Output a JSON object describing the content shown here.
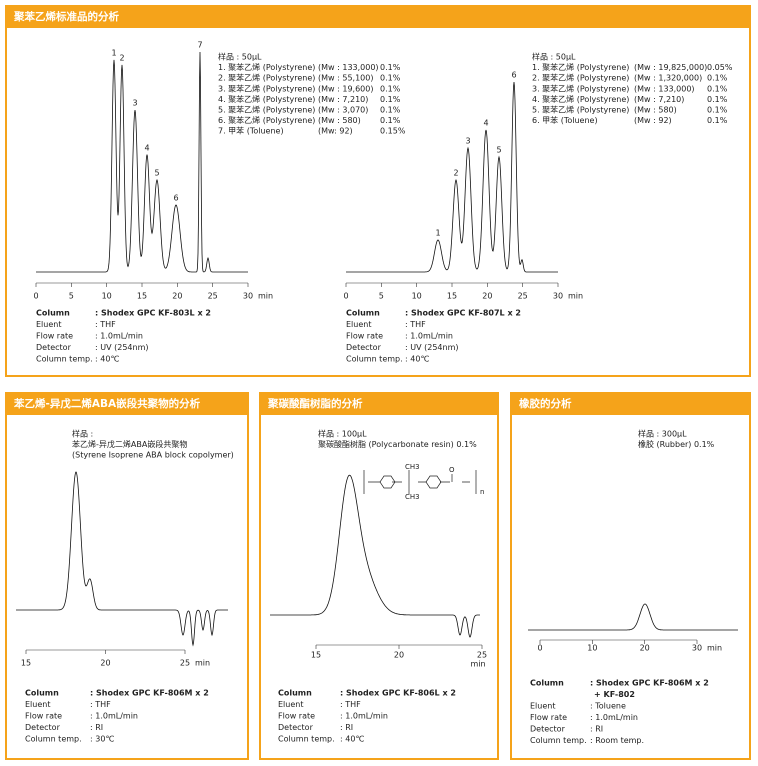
{
  "panels": [
    {
      "title": "聚苯乙烯标准品的分析",
      "charts": [
        {
          "type": "chromatogram",
          "peak_labels": [
            "1",
            "2",
            "3",
            "4",
            "5",
            "6",
            "7"
          ],
          "sample": {
            "header": "样品 : 50μL",
            "lines": [
              [
                "1. 聚苯乙烯 (Polystyrene)",
                "(Mw : 133,000)",
                "0.1%"
              ],
              [
                "2. 聚苯乙烯 (Polystyrene)",
                "(Mw :   55,100)",
                "0.1%"
              ],
              [
                "3. 聚苯乙烯 (Polystyrene)",
                "(Mw :   19,600)",
                "0.1%"
              ],
              [
                "4. 聚苯乙烯 (Polystyrene)",
                "(Mw :     7,210)",
                "0.1%"
              ],
              [
                "5. 聚苯乙烯 (Polystyrene)",
                "(Mw :     3,070)",
                "0.1%"
              ],
              [
                "6. 聚苯乙烯 (Polystyrene)",
                "(Mw :        580)",
                "0.1%"
              ],
              [
                "7. 甲苯 (Toluene)",
                "(Mw:          92)",
                "0.15%"
              ]
            ]
          },
          "xlim": [
            0,
            30
          ],
          "xticks": [
            0,
            5,
            10,
            15,
            20,
            25,
            30
          ],
          "x_unit": "min",
          "conditions": [
            [
              "Column",
              ": Shodex GPC KF-803L x 2"
            ],
            [
              "Eluent",
              ": THF"
            ],
            [
              "Flow rate",
              ": 1.0mL/min"
            ],
            [
              "Detector",
              ": UV (254nm)"
            ],
            [
              "Column temp.",
              ": 40℃"
            ]
          ]
        },
        {
          "type": "chromatogram",
          "peak_labels": [
            "1",
            "2",
            "3",
            "4",
            "5",
            "6"
          ],
          "sample": {
            "header": "样品 : 50μL",
            "lines": [
              [
                "1. 聚苯乙烯 (Polystyrene)",
                "(Mw : 19,825,000)",
                "0.05%"
              ],
              [
                "2. 聚苯乙烯 (Polystyrene)",
                "(Mw :   1,320,000)",
                "0.1%"
              ],
              [
                "3. 聚苯乙烯 (Polystyrene)",
                "(Mw :      133,000)",
                "0.1%"
              ],
              [
                "4. 聚苯乙烯 (Polystyrene)",
                "(Mw :          7,210)",
                "0.1%"
              ],
              [
                "5. 聚苯乙烯 (Polystyrene)",
                "(Mw :             580)",
                "0.1%"
              ],
              [
                "6. 甲苯 (Toluene)",
                "(Mw :               92)",
                "0.1%"
              ]
            ]
          },
          "xlim": [
            0,
            30
          ],
          "xticks": [
            0,
            5,
            10,
            15,
            20,
            25,
            30
          ],
          "x_unit": "min",
          "conditions": [
            [
              "Column",
              ": Shodex GPC KF-807L x 2"
            ],
            [
              "Eluent",
              ": THF"
            ],
            [
              "Flow rate",
              ": 1.0mL/min"
            ],
            [
              "Detector",
              ": UV (254nm)"
            ],
            [
              "Column temp.",
              ": 40℃"
            ]
          ]
        }
      ]
    },
    {
      "title": "苯乙烯-异戊二烯ABA嵌段共聚物的分析",
      "charts": [
        {
          "type": "chromatogram",
          "sample": {
            "header": "样品 :",
            "lines": [
              [
                "苯乙烯-异戊二烯ABA嵌段共聚物"
              ],
              [
                "(Styrene Isoprene ABA block copolymer)"
              ]
            ]
          },
          "xlim": [
            15,
            25
          ],
          "xticks": [
            15,
            20,
            25
          ],
          "x_unit": "min",
          "conditions": [
            [
              "Column",
              ": Shodex GPC KF-806M x 2"
            ],
            [
              "Eluent",
              ": THF"
            ],
            [
              "Flow rate",
              ": 1.0mL/min"
            ],
            [
              "Detector",
              ": RI"
            ],
            [
              "Column temp.",
              ": 30℃"
            ]
          ]
        }
      ]
    },
    {
      "title": "聚碳酸酯树脂的分析",
      "charts": [
        {
          "type": "chromatogram",
          "sample": {
            "header": "样品 : 100μL",
            "lines": [
              [
                "聚碳酸酯树脂 (Polycarbonate resin)  0.1%"
              ]
            ]
          },
          "structure": [
            "CH3",
            "CH3",
            "O",
            "n"
          ],
          "xlim": [
            15,
            25
          ],
          "xticks": [
            15,
            20,
            25
          ],
          "x_unit": "min",
          "conditions": [
            [
              "Column",
              ": Shodex GPC KF-806L x 2"
            ],
            [
              "Eluent",
              ": THF"
            ],
            [
              "Flow rate",
              ": 1.0mL/min"
            ],
            [
              "Detector",
              ": RI"
            ],
            [
              "Column temp.",
              ": 40℃"
            ]
          ]
        }
      ]
    },
    {
      "title": "橡胶的分析",
      "charts": [
        {
          "type": "chromatogram",
          "sample": {
            "header": "样品 : 300μL",
            "lines": [
              [
                "橡胶 (Rubber)  0.1%"
              ]
            ]
          },
          "xlim": [
            0,
            30
          ],
          "xticks": [
            0,
            10,
            20,
            30
          ],
          "x_unit": "min",
          "conditions": [
            [
              "Column",
              ": Shodex GPC KF-806M x 2"
            ],
            [
              "Eluent",
              ": Toluene"
            ],
            [
              "Flow rate",
              ": 1.0mL/min"
            ],
            [
              "Detector",
              ": RI"
            ],
            [
              "Column temp.",
              ": Room temp."
            ]
          ],
          "column_extra": "+ KF-802"
        }
      ]
    }
  ]
}
